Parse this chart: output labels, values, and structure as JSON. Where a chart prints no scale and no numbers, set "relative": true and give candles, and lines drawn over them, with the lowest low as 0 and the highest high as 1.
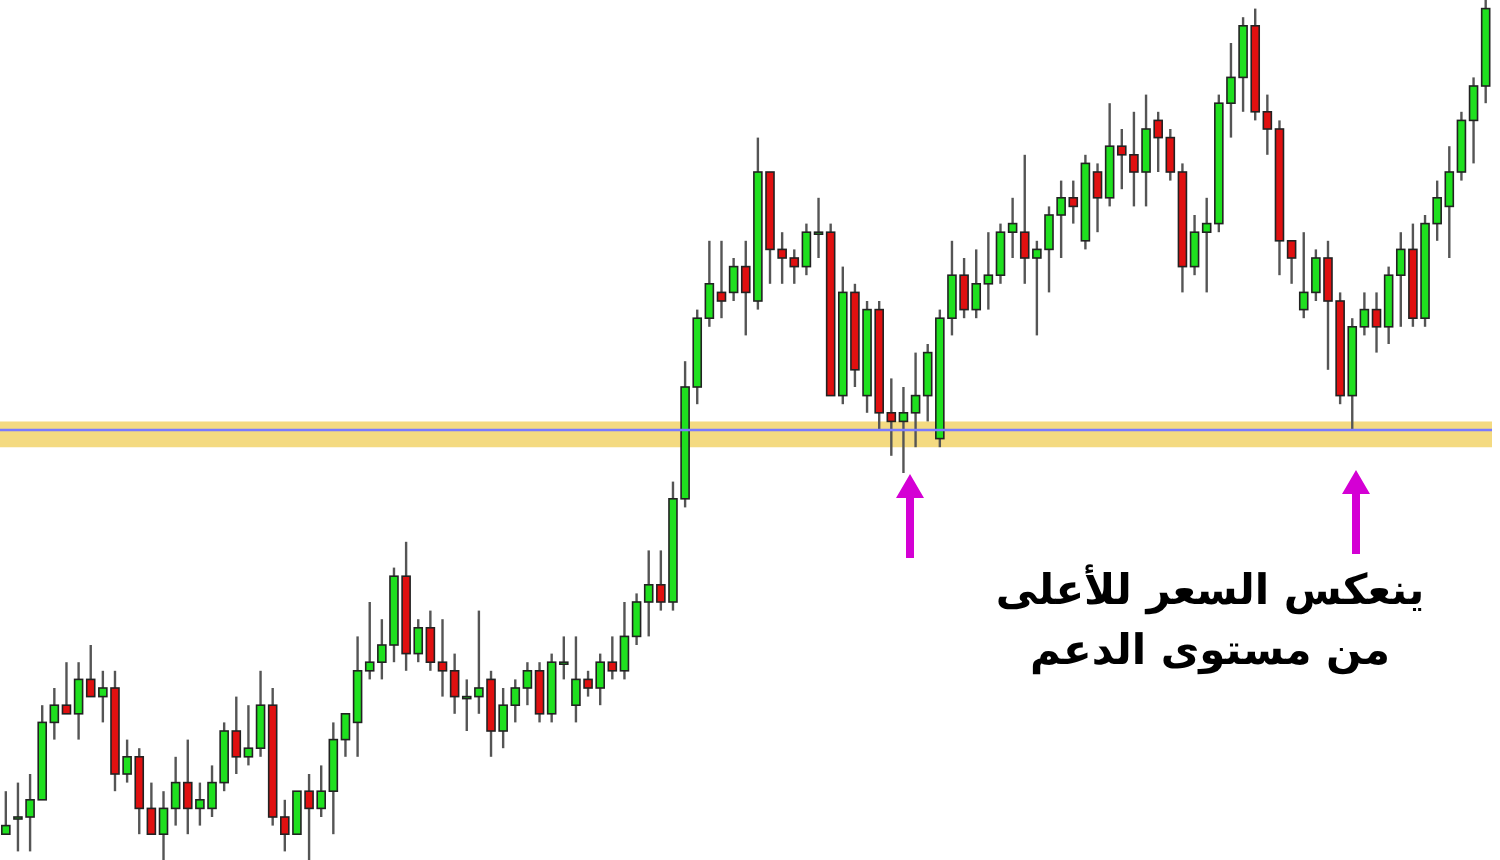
{
  "chart_data": {
    "type": "candlestick",
    "relative": true,
    "categories": [
      null,
      null,
      null,
      null,
      null,
      null,
      null,
      null,
      null,
      null,
      null,
      null,
      null,
      null,
      null,
      null,
      null,
      null,
      null,
      null,
      null,
      null,
      null,
      null,
      null,
      null,
      null,
      null,
      null,
      null,
      null,
      null,
      null,
      null,
      null,
      null,
      null,
      null,
      null,
      null,
      null,
      null,
      null,
      null,
      null,
      null,
      null,
      null,
      null,
      null,
      null,
      null,
      null,
      null,
      null,
      null,
      null,
      null,
      null,
      null,
      null,
      null,
      null,
      null,
      null,
      null,
      null,
      null,
      null,
      null,
      null,
      null,
      null,
      null,
      null,
      null,
      null,
      null,
      null,
      null,
      null,
      null,
      null,
      null,
      null,
      null,
      null,
      null,
      null,
      null,
      null,
      null,
      null,
      null,
      null,
      null,
      null,
      null,
      null,
      null,
      null,
      null,
      null,
      null,
      null,
      null,
      null,
      null,
      null,
      null,
      null,
      null,
      null,
      null,
      null,
      null,
      null,
      null,
      null,
      null,
      null,
      null,
      null
    ],
    "ohlc": [
      [
        0.03,
        0.08,
        0.03,
        0.04
      ],
      [
        0.05,
        0.09,
        0.01,
        0.05
      ],
      [
        0.05,
        0.1,
        0.01,
        0.07
      ],
      [
        0.07,
        0.18,
        0.07,
        0.16
      ],
      [
        0.16,
        0.2,
        0.14,
        0.18
      ],
      [
        0.18,
        0.23,
        0.17,
        0.17
      ],
      [
        0.17,
        0.23,
        0.14,
        0.21
      ],
      [
        0.21,
        0.25,
        0.19,
        0.19
      ],
      [
        0.19,
        0.22,
        0.16,
        0.2
      ],
      [
        0.2,
        0.22,
        0.08,
        0.1
      ],
      [
        0.1,
        0.14,
        0.09,
        0.12
      ],
      [
        0.12,
        0.13,
        0.03,
        0.06
      ],
      [
        0.06,
        0.09,
        0.03,
        0.03
      ],
      [
        0.03,
        0.08,
        0,
        0.06
      ],
      [
        0.06,
        0.12,
        0.04,
        0.09
      ],
      [
        0.09,
        0.14,
        0.03,
        0.06
      ],
      [
        0.06,
        0.09,
        0.04,
        0.07
      ],
      [
        0.06,
        0.11,
        0.05,
        0.09
      ],
      [
        0.09,
        0.16,
        0.08,
        0.15
      ],
      [
        0.15,
        0.19,
        0.1,
        0.12
      ],
      [
        0.12,
        0.18,
        0.11,
        0.13
      ],
      [
        0.13,
        0.22,
        0.12,
        0.18
      ],
      [
        0.18,
        0.2,
        0.04,
        0.05
      ],
      [
        0.05,
        0.07,
        0.01,
        0.03
      ],
      [
        0.03,
        0.08,
        0.03,
        0.08
      ],
      [
        0.08,
        0.1,
        0,
        0.06
      ],
      [
        0.06,
        0.11,
        0.05,
        0.08
      ],
      [
        0.08,
        0.16,
        0.03,
        0.14
      ],
      [
        0.14,
        0.17,
        0.12,
        0.17
      ],
      [
        0.16,
        0.26,
        0.12,
        0.22
      ],
      [
        0.22,
        0.3,
        0.21,
        0.23
      ],
      [
        0.23,
        0.28,
        0.21,
        0.25
      ],
      [
        0.25,
        0.34,
        0.23,
        0.33
      ],
      [
        0.33,
        0.37,
        0.22,
        0.24
      ],
      [
        0.24,
        0.28,
        0.23,
        0.27
      ],
      [
        0.27,
        0.29,
        0.22,
        0.23
      ],
      [
        0.23,
        0.28,
        0.19,
        0.22
      ],
      [
        0.22,
        0.24,
        0.17,
        0.19
      ],
      [
        0.19,
        0.21,
        0.15,
        0.19
      ],
      [
        0.19,
        0.29,
        0.17,
        0.2
      ],
      [
        0.21,
        0.22,
        0.12,
        0.15
      ],
      [
        0.15,
        0.2,
        0.13,
        0.18
      ],
      [
        0.18,
        0.21,
        0.16,
        0.2
      ],
      [
        0.2,
        0.23,
        0.18,
        0.22
      ],
      [
        0.22,
        0.23,
        0.16,
        0.17
      ],
      [
        0.17,
        0.24,
        0.16,
        0.23
      ],
      [
        0.23,
        0.26,
        0.21,
        0.23
      ],
      [
        0.18,
        0.26,
        0.16,
        0.21
      ],
      [
        0.21,
        0.22,
        0.19,
        0.2
      ],
      [
        0.2,
        0.24,
        0.18,
        0.23
      ],
      [
        0.23,
        0.26,
        0.21,
        0.22
      ],
      [
        0.22,
        0.3,
        0.21,
        0.26
      ],
      [
        0.26,
        0.31,
        0.25,
        0.3
      ],
      [
        0.3,
        0.36,
        0.26,
        0.32
      ],
      [
        0.32,
        0.36,
        0.29,
        0.3
      ],
      [
        0.3,
        0.44,
        0.29,
        0.42
      ],
      [
        0.42,
        0.58,
        0.41,
        0.55
      ],
      [
        0.55,
        0.64,
        0.53,
        0.63
      ],
      [
        0.63,
        0.72,
        0.62,
        0.67
      ],
      [
        0.66,
        0.72,
        0.63,
        0.65
      ],
      [
        0.66,
        0.7,
        0.65,
        0.69
      ],
      [
        0.69,
        0.72,
        0.61,
        0.66
      ],
      [
        0.65,
        0.84,
        0.64,
        0.8
      ],
      [
        0.8,
        0.8,
        0.67,
        0.71
      ],
      [
        0.71,
        0.73,
        0.67,
        0.7
      ],
      [
        0.7,
        0.71,
        0.67,
        0.69
      ],
      [
        0.69,
        0.74,
        0.68,
        0.73
      ],
      [
        0.73,
        0.77,
        0.7,
        0.73
      ],
      [
        0.73,
        0.74,
        0.54,
        0.54
      ],
      [
        0.54,
        0.69,
        0.53,
        0.66
      ],
      [
        0.66,
        0.67,
        0.55,
        0.57
      ],
      [
        0.54,
        0.65,
        0.52,
        0.64
      ],
      [
        0.64,
        0.65,
        0.5,
        0.52
      ],
      [
        0.52,
        0.56,
        0.47,
        0.51
      ],
      [
        0.51,
        0.55,
        0.45,
        0.52
      ],
      [
        0.52,
        0.59,
        0.48,
        0.54
      ],
      [
        0.54,
        0.6,
        0.51,
        0.59
      ],
      [
        0.49,
        0.64,
        0.48,
        0.63
      ],
      [
        0.63,
        0.72,
        0.61,
        0.68
      ],
      [
        0.68,
        0.7,
        0.63,
        0.64
      ],
      [
        0.64,
        0.71,
        0.63,
        0.67
      ],
      [
        0.67,
        0.73,
        0.64,
        0.68
      ],
      [
        0.68,
        0.74,
        0.67,
        0.73
      ],
      [
        0.73,
        0.77,
        0.7,
        0.74
      ],
      [
        0.73,
        0.82,
        0.67,
        0.7
      ],
      [
        0.7,
        0.72,
        0.61,
        0.71
      ],
      [
        0.71,
        0.76,
        0.66,
        0.75
      ],
      [
        0.75,
        0.79,
        0.7,
        0.77
      ],
      [
        0.77,
        0.79,
        0.74,
        0.76
      ],
      [
        0.72,
        0.82,
        0.71,
        0.81
      ],
      [
        0.8,
        0.81,
        0.73,
        0.77
      ],
      [
        0.77,
        0.88,
        0.76,
        0.83
      ],
      [
        0.83,
        0.85,
        0.78,
        0.82
      ],
      [
        0.82,
        0.87,
        0.76,
        0.8
      ],
      [
        0.8,
        0.89,
        0.76,
        0.85
      ],
      [
        0.86,
        0.87,
        0.8,
        0.84
      ],
      [
        0.84,
        0.85,
        0.79,
        0.8
      ],
      [
        0.8,
        0.81,
        0.66,
        0.69
      ],
      [
        0.69,
        0.75,
        0.68,
        0.73
      ],
      [
        0.73,
        0.77,
        0.66,
        0.74
      ],
      [
        0.74,
        0.89,
        0.73,
        0.88
      ],
      [
        0.88,
        0.95,
        0.84,
        0.91
      ],
      [
        0.91,
        0.98,
        0.87,
        0.97
      ],
      [
        0.97,
        0.99,
        0.86,
        0.87
      ],
      [
        0.87,
        0.89,
        0.82,
        0.85
      ],
      [
        0.85,
        0.86,
        0.68,
        0.72
      ],
      [
        0.72,
        0.72,
        0.67,
        0.7
      ],
      [
        0.64,
        0.73,
        0.63,
        0.66
      ],
      [
        0.66,
        0.71,
        0.65,
        0.7
      ],
      [
        0.7,
        0.72,
        0.57,
        0.65
      ],
      [
        0.65,
        0.66,
        0.53,
        0.54
      ],
      [
        0.54,
        0.63,
        0.5,
        0.62
      ],
      [
        0.62,
        0.66,
        0.61,
        0.64
      ],
      [
        0.64,
        0.66,
        0.59,
        0.62
      ],
      [
        0.62,
        0.69,
        0.6,
        0.68
      ],
      [
        0.68,
        0.73,
        0.62,
        0.71
      ],
      [
        0.71,
        0.74,
        0.62,
        0.63
      ],
      [
        0.63,
        0.75,
        0.62,
        0.74
      ],
      [
        0.74,
        0.79,
        0.72,
        0.77
      ],
      [
        0.76,
        0.83,
        0.7,
        0.8
      ],
      [
        0.8,
        0.87,
        0.79,
        0.86
      ],
      [
        0.86,
        0.91,
        0.81,
        0.9
      ],
      [
        0.9,
        1,
        0.88,
        0.99
      ]
    ],
    "ref_lines": [
      {
        "axis": "y",
        "value": 0.5,
        "color": "#7a7aff"
      }
    ],
    "bands": [
      {
        "axis": "y",
        "from": 0.48,
        "to": 0.51,
        "color": "#f2d36b"
      }
    ],
    "annotations": [
      "ينعكس السعر للأعلى من مستوى الدعم"
    ]
  }
}
